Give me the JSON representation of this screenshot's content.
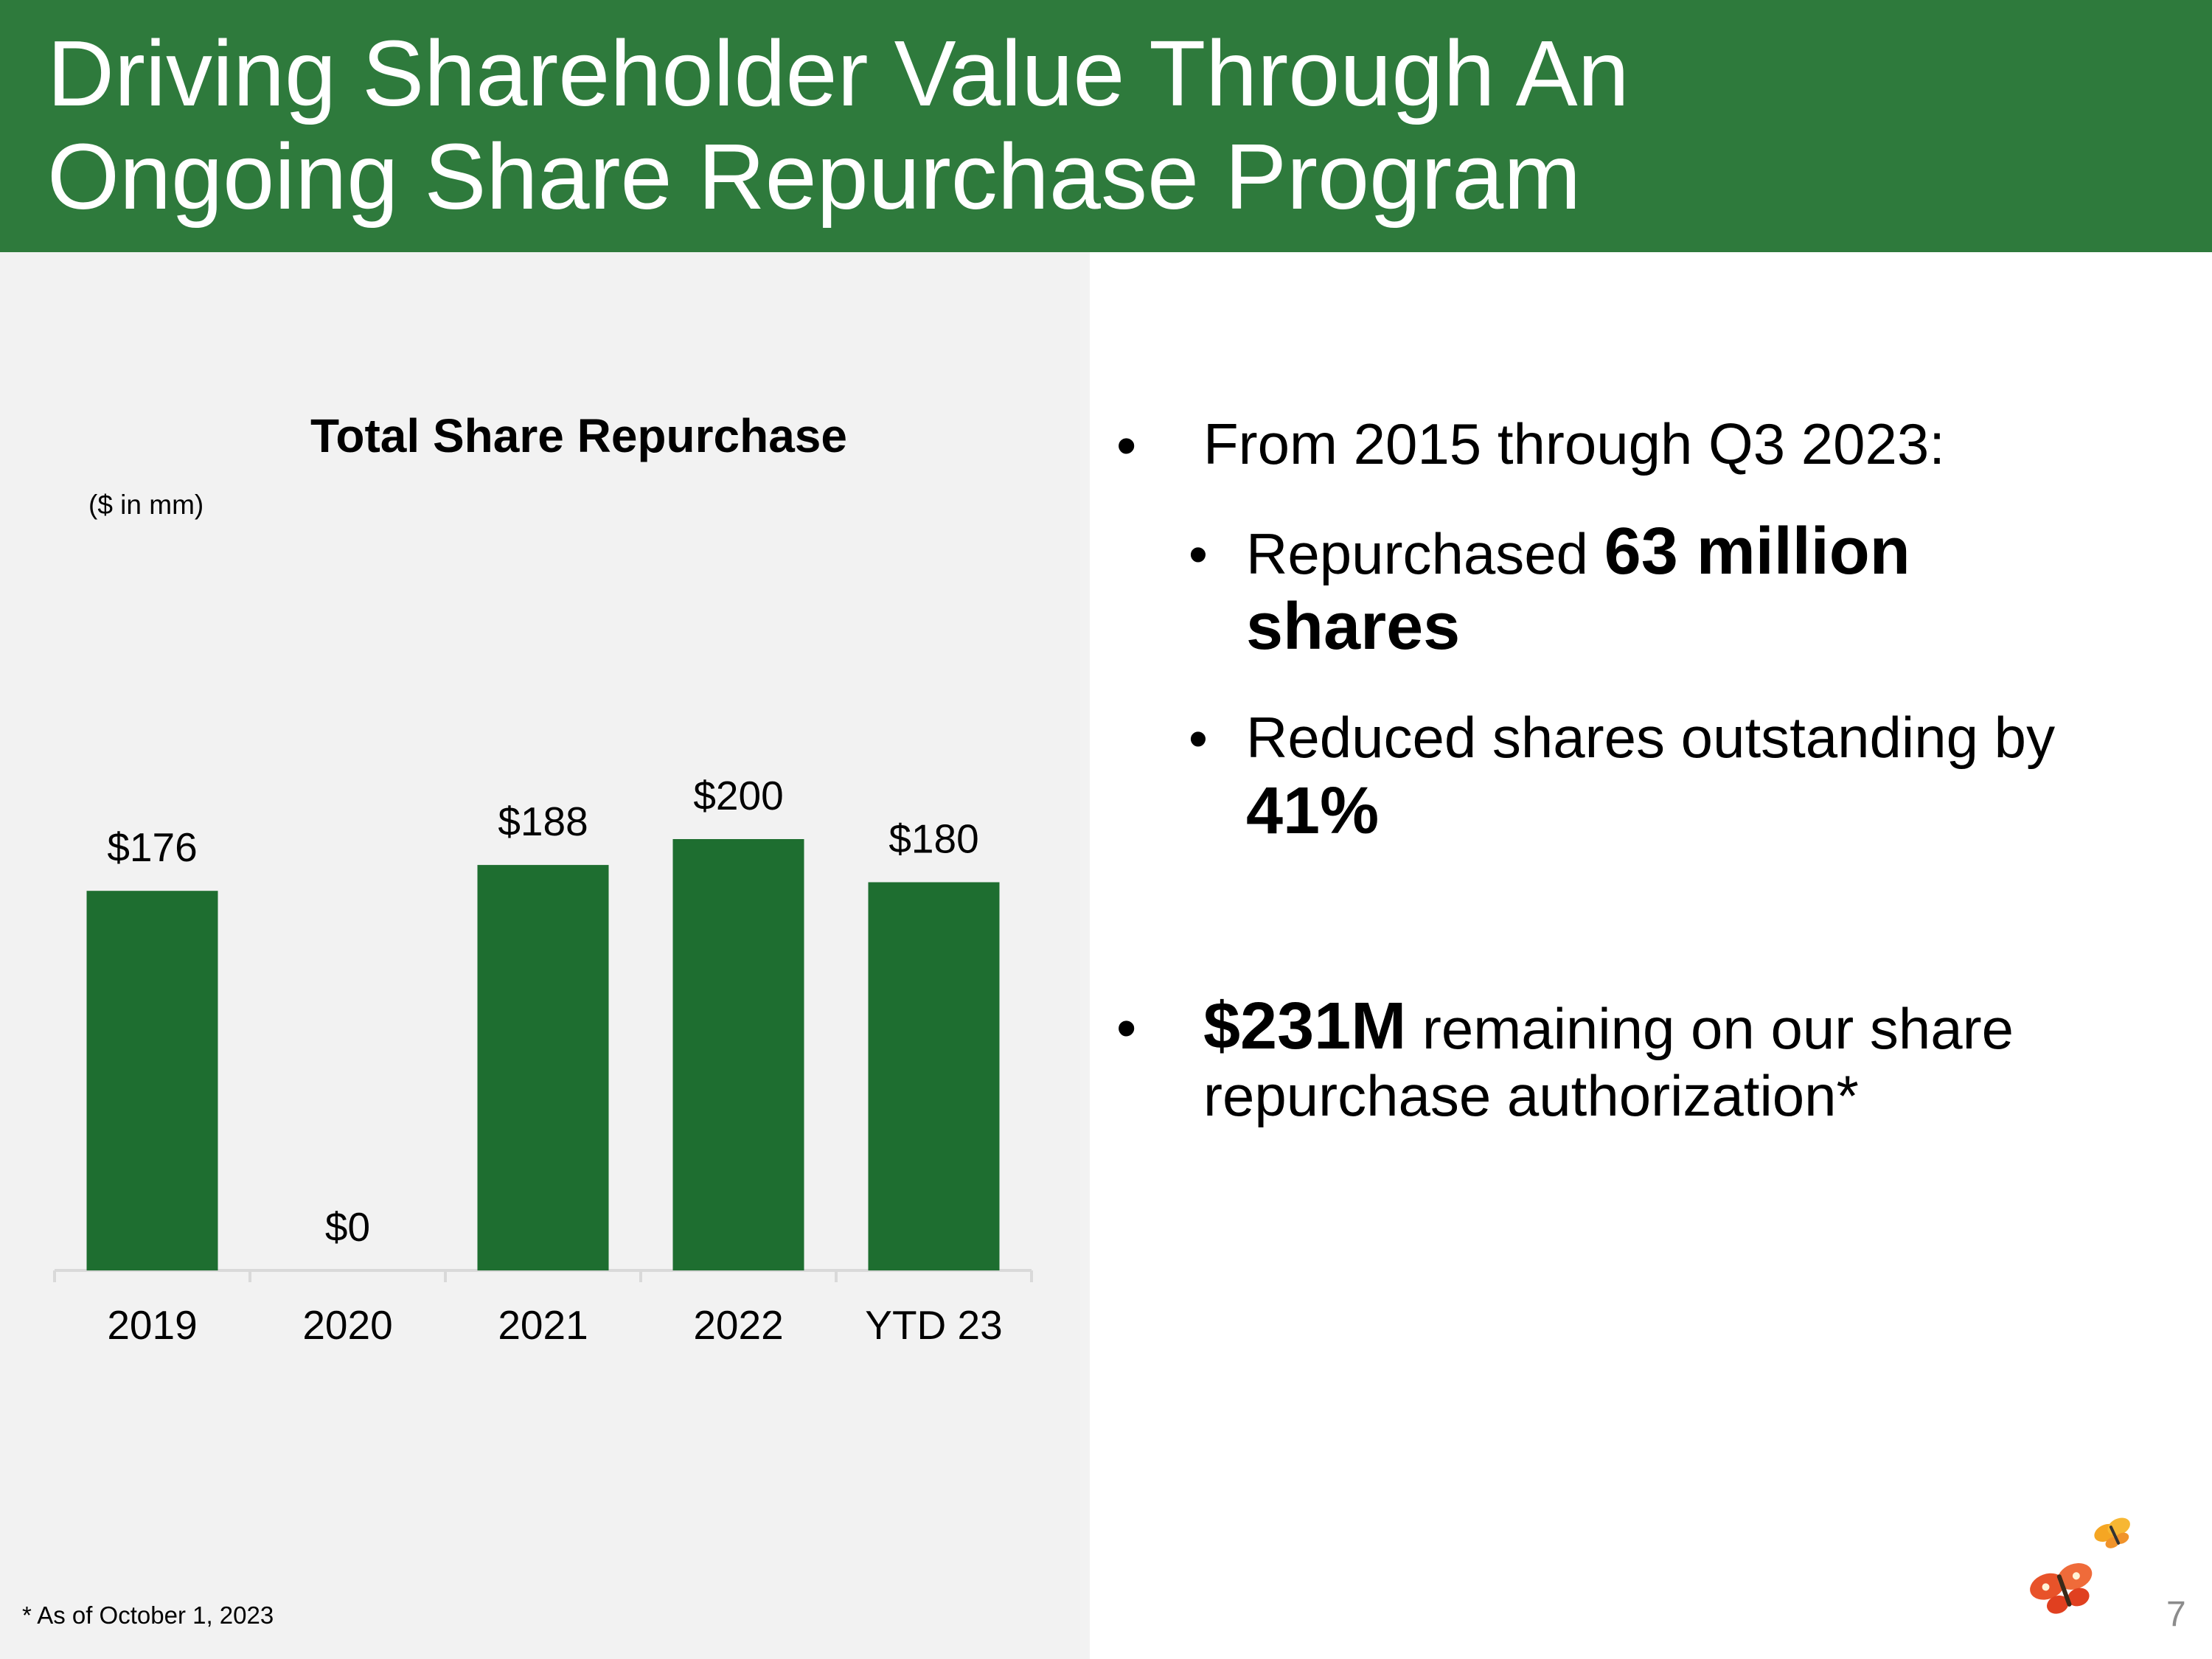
{
  "header": {
    "title_line1": "Driving Shareholder Value Through An",
    "title_line2": "Ongoing Share Repurchase Program",
    "background": "#2e7a3c"
  },
  "chart_data": {
    "type": "bar",
    "title": "Total Share Repurchase",
    "unit_note": "($ in mm)",
    "categories": [
      "2019",
      "2020",
      "2021",
      "2022",
      "YTD 23"
    ],
    "values": [
      176,
      0,
      188,
      200,
      180
    ],
    "data_labels": [
      "$176",
      "$0",
      "$188",
      "$200",
      "$180"
    ],
    "ylim": [
      0,
      200
    ],
    "xlabel": "",
    "ylabel": "",
    "grid": false,
    "bar_color": "#1e6e30",
    "axis_color": "#d9d9d9"
  },
  "bullets": {
    "b1_text": "From 2015 through Q3 2023:",
    "sub1_prefix": "Repurchased ",
    "sub1_bold_a": "63 million",
    "sub1_bold_b": "shares",
    "sub2_text": "Reduced shares outstanding by",
    "sub2_bold": "41%",
    "b2_bold": "$231M",
    "b2_text_a": " remaining on our share",
    "b2_text_b": "repurchase authorization*"
  },
  "footnote": "* As of October 1, 2023",
  "page_number": "7",
  "logo": {
    "name": "butterfly-logo",
    "colors": [
      "#e8532a",
      "#f5a623"
    ]
  }
}
